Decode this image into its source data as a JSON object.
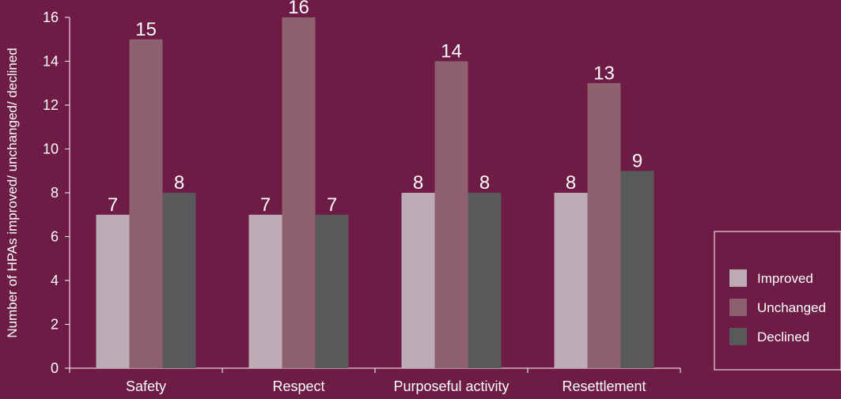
{
  "colors": {
    "background": "#6e1b45",
    "axis": "#ffffff",
    "text": "#ffffff"
  },
  "chart_data": {
    "type": "bar",
    "categories": [
      "Safety",
      "Respect",
      "Purposeful activity",
      "Resettlement"
    ],
    "series": [
      {
        "name": "Improved",
        "values": [
          7,
          7,
          8,
          8
        ],
        "color": "#bfabb6"
      },
      {
        "name": "Unchanged",
        "values": [
          15,
          16,
          14,
          13
        ],
        "color": "#8e6070"
      },
      {
        "name": "Declined",
        "values": [
          8,
          7,
          8,
          9
        ],
        "color": "#58595b"
      }
    ],
    "title": "",
    "xlabel": "",
    "ylabel": "Number of HPAs improved/ unchanged/ declined",
    "ylim": [
      0,
      16
    ],
    "yticks": [
      0,
      2,
      4,
      6,
      8,
      10,
      12,
      14,
      16
    ],
    "grid": false,
    "legend_position": "bottom-right"
  }
}
